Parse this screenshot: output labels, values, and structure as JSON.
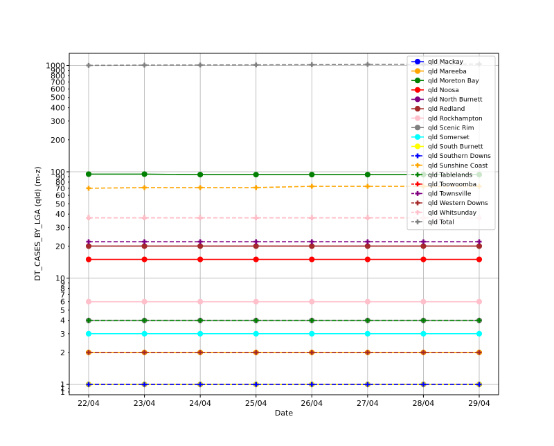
{
  "chart_data": {
    "type": "line",
    "title": "",
    "xlabel": "Date",
    "ylabel": "DT_CASES_BY_LGA (qld) (m-z)",
    "yscale": "log",
    "ylim": [
      0.8,
      1300
    ],
    "grid": true,
    "legend_position": "top-right",
    "categories": [
      "22/04",
      "23/04",
      "24/04",
      "25/04",
      "26/04",
      "27/04",
      "28/04",
      "29/04"
    ],
    "y_tick_labels": [
      {
        "value": 0.85,
        "label": "1"
      },
      {
        "value": 0.92,
        "label": "1"
      },
      {
        "value": 1,
        "label": "1"
      },
      {
        "value": 2,
        "label": "2"
      },
      {
        "value": 3,
        "label": "3"
      },
      {
        "value": 4,
        "label": "4"
      },
      {
        "value": 5,
        "label": "5"
      },
      {
        "value": 6,
        "label": "6"
      },
      {
        "value": 7,
        "label": "7"
      },
      {
        "value": 8,
        "label": "8"
      },
      {
        "value": 9,
        "label": "9"
      },
      {
        "value": 10,
        "label": "10"
      },
      {
        "value": 20,
        "label": "20"
      },
      {
        "value": 30,
        "label": "30"
      },
      {
        "value": 40,
        "label": "40"
      },
      {
        "value": 50,
        "label": "50"
      },
      {
        "value": 60,
        "label": "60"
      },
      {
        "value": 70,
        "label": "70"
      },
      {
        "value": 80,
        "label": "80"
      },
      {
        "value": 90,
        "label": "90"
      },
      {
        "value": 100,
        "label": "100"
      },
      {
        "value": 200,
        "label": "200"
      },
      {
        "value": 300,
        "label": "300"
      },
      {
        "value": 400,
        "label": "400"
      },
      {
        "value": 500,
        "label": "500"
      },
      {
        "value": 600,
        "label": "600"
      },
      {
        "value": 700,
        "label": "700"
      },
      {
        "value": 800,
        "label": "800"
      },
      {
        "value": 900,
        "label": "900"
      },
      {
        "value": 1000,
        "label": "1000"
      }
    ],
    "series": [
      {
        "name": "qld Mackay",
        "color": "#0000ff",
        "marker": "circle",
        "dash": "solid",
        "values": [
          1,
          1,
          1,
          1,
          1,
          1,
          1,
          1
        ]
      },
      {
        "name": "qld Mareeba",
        "color": "#ffa500",
        "marker": "circle",
        "dash": "solid",
        "values": [
          2,
          2,
          2,
          2,
          2,
          2,
          2,
          2
        ]
      },
      {
        "name": "qld Moreton Bay",
        "color": "#008000",
        "marker": "circle",
        "dash": "solid",
        "values": [
          95,
          95,
          94,
          94,
          94,
          94,
          94,
          94
        ]
      },
      {
        "name": "qld Noosa",
        "color": "#ff0000",
        "marker": "circle",
        "dash": "solid",
        "values": [
          15,
          15,
          15,
          15,
          15,
          15,
          15,
          15
        ]
      },
      {
        "name": "qld North Burnett",
        "color": "#800080",
        "marker": "circle",
        "dash": "solid",
        "values": [
          1,
          1,
          1,
          1,
          1,
          1,
          1,
          1
        ]
      },
      {
        "name": "qld Redland",
        "color": "#a52a2a",
        "marker": "circle",
        "dash": "solid",
        "values": [
          20,
          20,
          20,
          20,
          20,
          20,
          20,
          20
        ]
      },
      {
        "name": "qld Rockhampton",
        "color": "#ffc0cb",
        "marker": "circle",
        "dash": "solid",
        "values": [
          6,
          6,
          6,
          6,
          6,
          6,
          6,
          6
        ]
      },
      {
        "name": "qld Scenic Rim",
        "color": "#808080",
        "marker": "circle",
        "dash": "solid",
        "values": [
          4,
          4,
          4,
          4,
          4,
          4,
          4,
          4
        ]
      },
      {
        "name": "qld Somerset",
        "color": "#00ffff",
        "marker": "circle",
        "dash": "solid",
        "values": [
          3,
          3,
          3,
          3,
          3,
          3,
          3,
          3
        ]
      },
      {
        "name": "qld South Burnett",
        "color": "#ffff00",
        "marker": "circle",
        "dash": "solid",
        "values": [
          1,
          1,
          1,
          1,
          1,
          1,
          1,
          1
        ]
      },
      {
        "name": "qld Southern Downs",
        "color": "#0000ff",
        "marker": "plus",
        "dash": "dashed",
        "values": [
          1,
          1,
          1,
          1,
          1,
          1,
          1,
          1
        ]
      },
      {
        "name": "qld Sunshine Coast",
        "color": "#ffa500",
        "marker": "plus",
        "dash": "dashed",
        "values": [
          70,
          71,
          71,
          71,
          73,
          73,
          73,
          73
        ]
      },
      {
        "name": "qld Tablelands",
        "color": "#008000",
        "marker": "plus",
        "dash": "dashed",
        "values": [
          4,
          4,
          4,
          4,
          4,
          4,
          4,
          4
        ]
      },
      {
        "name": "qld Toowoomba",
        "color": "#ff0000",
        "marker": "plus",
        "dash": "dashed",
        "values": [
          37,
          37,
          37,
          37,
          37,
          37,
          37,
          37
        ]
      },
      {
        "name": "qld Townsville",
        "color": "#800080",
        "marker": "plus",
        "dash": "dashed",
        "values": [
          22,
          22,
          22,
          22,
          22,
          22,
          22,
          22
        ]
      },
      {
        "name": "qld Western Downs",
        "color": "#a52a2a",
        "marker": "plus",
        "dash": "dashed",
        "values": [
          2,
          2,
          2,
          2,
          2,
          2,
          2,
          2
        ]
      },
      {
        "name": "qld Whitsunday",
        "color": "#ffc0cb",
        "marker": "plus",
        "dash": "dashed",
        "values": [
          37,
          37,
          37,
          37,
          37,
          37,
          37,
          37
        ]
      },
      {
        "name": "qld Total",
        "color": "#808080",
        "marker": "plus",
        "dash": "dashed",
        "values": [
          1001,
          1007,
          1009,
          1012,
          1017,
          1023,
          1026,
          1030
        ]
      }
    ]
  }
}
